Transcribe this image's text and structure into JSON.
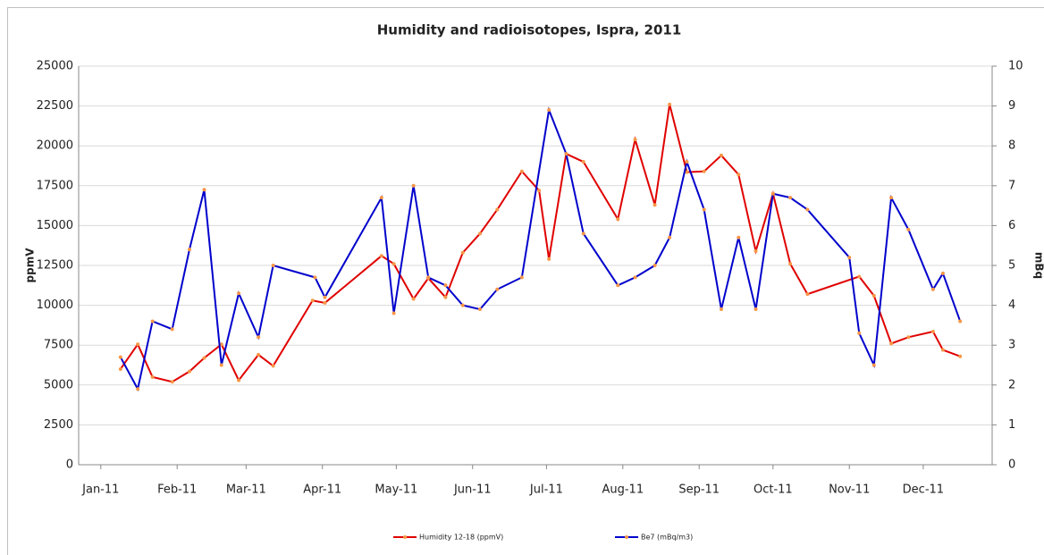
{
  "chart_data": {
    "type": "line",
    "title": "Humidity and radioisotopes, Ispra, 2011",
    "ylabel": "ppmV",
    "y2label": "mBq",
    "xlim": [
      -9,
      362
    ],
    "xticks": [
      {
        "value": 0,
        "label": "Jan-11"
      },
      {
        "value": 31,
        "label": "Feb-11"
      },
      {
        "value": 59,
        "label": "Mar-11"
      },
      {
        "value": 90,
        "label": "Apr-11"
      },
      {
        "value": 120,
        "label": "May-11"
      },
      {
        "value": 151,
        "label": "Jun-11"
      },
      {
        "value": 181,
        "label": "Jul-11"
      },
      {
        "value": 212,
        "label": "Aug-11"
      },
      {
        "value": 243,
        "label": "Sep-11"
      },
      {
        "value": 273,
        "label": "Oct-11"
      },
      {
        "value": 304,
        "label": "Nov-11"
      },
      {
        "value": 334,
        "label": "Dec-11"
      }
    ],
    "ylim": [
      0,
      25000
    ],
    "yticks": [
      0,
      2500,
      5000,
      7500,
      10000,
      12500,
      15000,
      17500,
      20000,
      22500,
      25000
    ],
    "y2lim": [
      0,
      10
    ],
    "y2ticks": [
      0,
      1,
      2,
      3,
      4,
      5,
      6,
      7,
      8,
      9,
      10
    ],
    "grid": true,
    "legend": "bottom",
    "marker_color": "#f79646",
    "series": [
      {
        "name": "Humidity 12-18 (ppmV)",
        "color": "#e00000",
        "x": [
          8,
          15,
          21,
          29,
          36,
          42,
          49,
          56,
          64,
          70,
          86,
          91,
          114,
          119,
          127,
          133,
          140,
          147,
          154,
          161,
          171,
          178,
          182,
          189,
          196,
          210,
          217,
          225,
          231,
          238,
          245,
          252,
          259,
          266,
          273,
          280,
          287,
          308,
          314,
          321,
          328,
          338,
          342,
          349
        ],
        "values": [
          6000,
          7550,
          5500,
          5200,
          5850,
          6700,
          7550,
          5300,
          6900,
          6200,
          10300,
          10150,
          13100,
          12600,
          10400,
          11700,
          10500,
          13300,
          14500,
          16000,
          18400,
          17200,
          12900,
          19500,
          19000,
          15400,
          20400,
          16300,
          22600,
          18350,
          18400,
          19400,
          18200,
          13400,
          17000,
          12600,
          10700,
          11800,
          10600,
          7600,
          8000,
          8350,
          7200,
          6800
        ]
      },
      {
        "name": "Be7 (mBq/m3)",
        "color": "#0000cc",
        "axis": "y2",
        "x": [
          8,
          15,
          21,
          29,
          36,
          42,
          49,
          56,
          64,
          70,
          87,
          91,
          114,
          119,
          127,
          133,
          140,
          147,
          154,
          161,
          171,
          182,
          189,
          196,
          210,
          217,
          225,
          231,
          238,
          245,
          252,
          259,
          266,
          273,
          280,
          287,
          304,
          308,
          314,
          321,
          328,
          338,
          342,
          349
        ],
        "values": [
          2.7,
          1.9,
          3.6,
          3.4,
          5.4,
          6.9,
          2.5,
          4.3,
          3.2,
          5.0,
          4.7,
          4.2,
          6.7,
          3.8,
          7.0,
          4.7,
          4.5,
          4.0,
          3.9,
          4.4,
          4.7,
          8.9,
          7.8,
          5.8,
          4.5,
          4.7,
          5.0,
          5.7,
          7.6,
          6.4,
          3.9,
          5.7,
          3.9,
          6.8,
          6.7,
          6.4,
          5.2,
          3.3,
          2.5,
          6.7,
          5.9,
          4.4,
          4.8,
          3.6
        ]
      }
    ]
  }
}
